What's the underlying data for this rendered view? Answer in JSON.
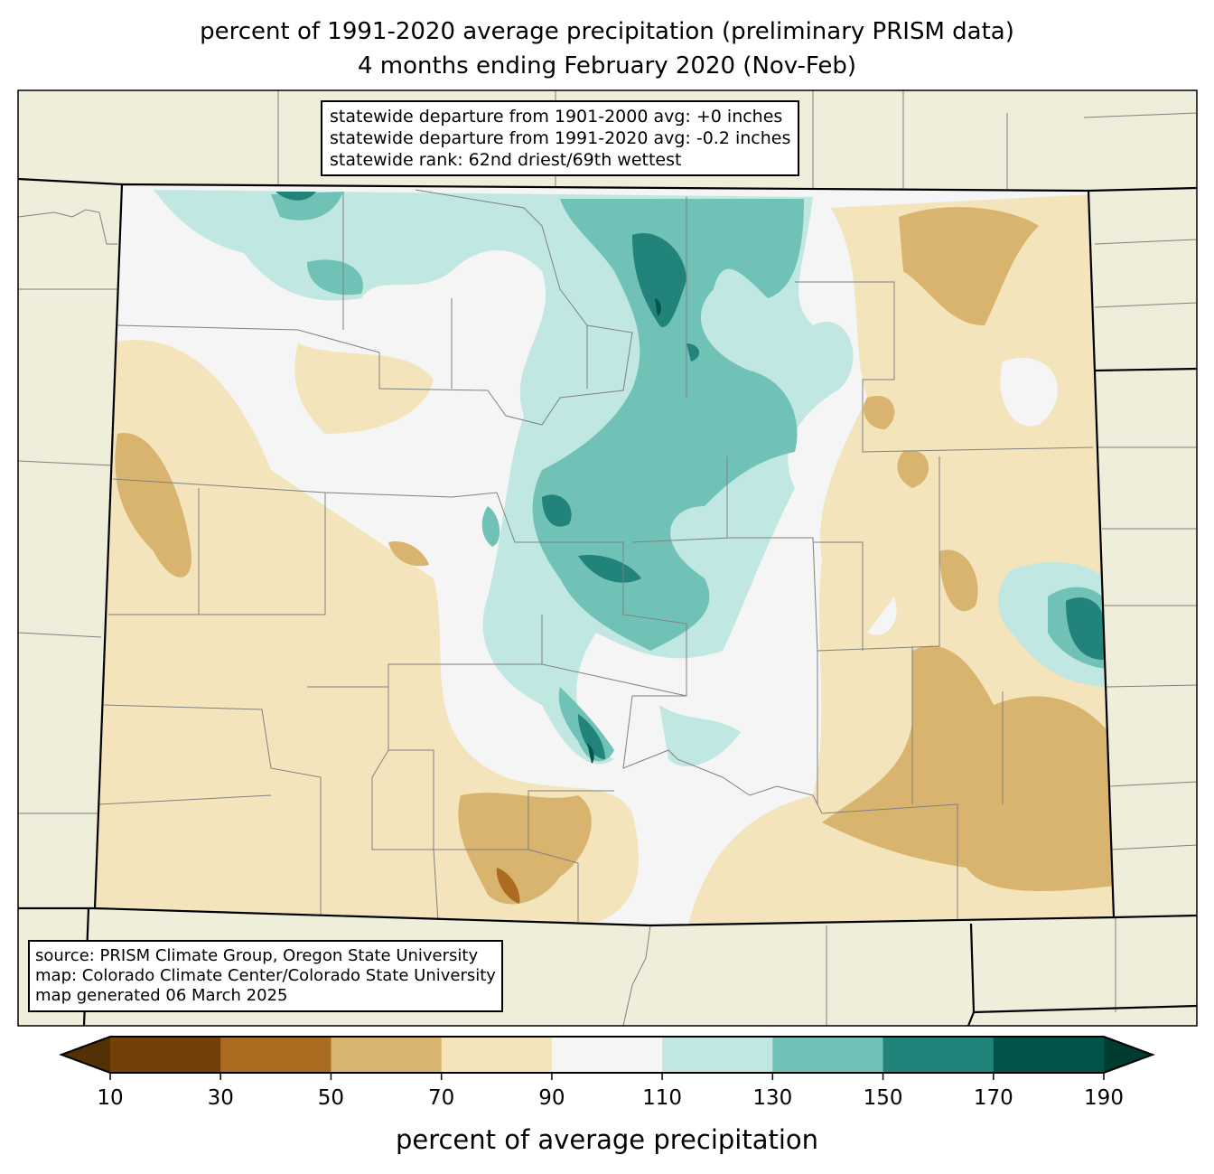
{
  "title": {
    "line1": "percent of 1991-2020 average precipitation (preliminary PRISM data)",
    "line2": "4 months ending February 2020 (Nov-Feb)"
  },
  "stats_box": {
    "line1": "statewide departure from 1901-2000 avg: +0 inches",
    "line2": "statewide departure from 1991-2020 avg: -0.2 inches",
    "line3": "statewide rank: 62nd driest/69th wettest"
  },
  "source_box": {
    "line1": "source: PRISM Climate Group, Oregon State University",
    "line2": "map: Colorado Climate Center/Colorado State University",
    "line3": "map generated 06 March 2025"
  },
  "colorbar": {
    "label": "percent of average precipitation",
    "ticks": [
      "10",
      "30",
      "50",
      "70",
      "90",
      "110",
      "130",
      "150",
      "170",
      "190"
    ],
    "colors": [
      "#734008",
      "#ab6c22",
      "#d9b46e",
      "#f3e4bc",
      "#f4f5f4",
      "#c0e7e2",
      "#71c2b6",
      "#218379",
      "#02544a"
    ],
    "extend_low": "#543005",
    "extend_high": "#003c30"
  },
  "colors": {
    "land": "#efeedb",
    "county_line": "#808080"
  }
}
